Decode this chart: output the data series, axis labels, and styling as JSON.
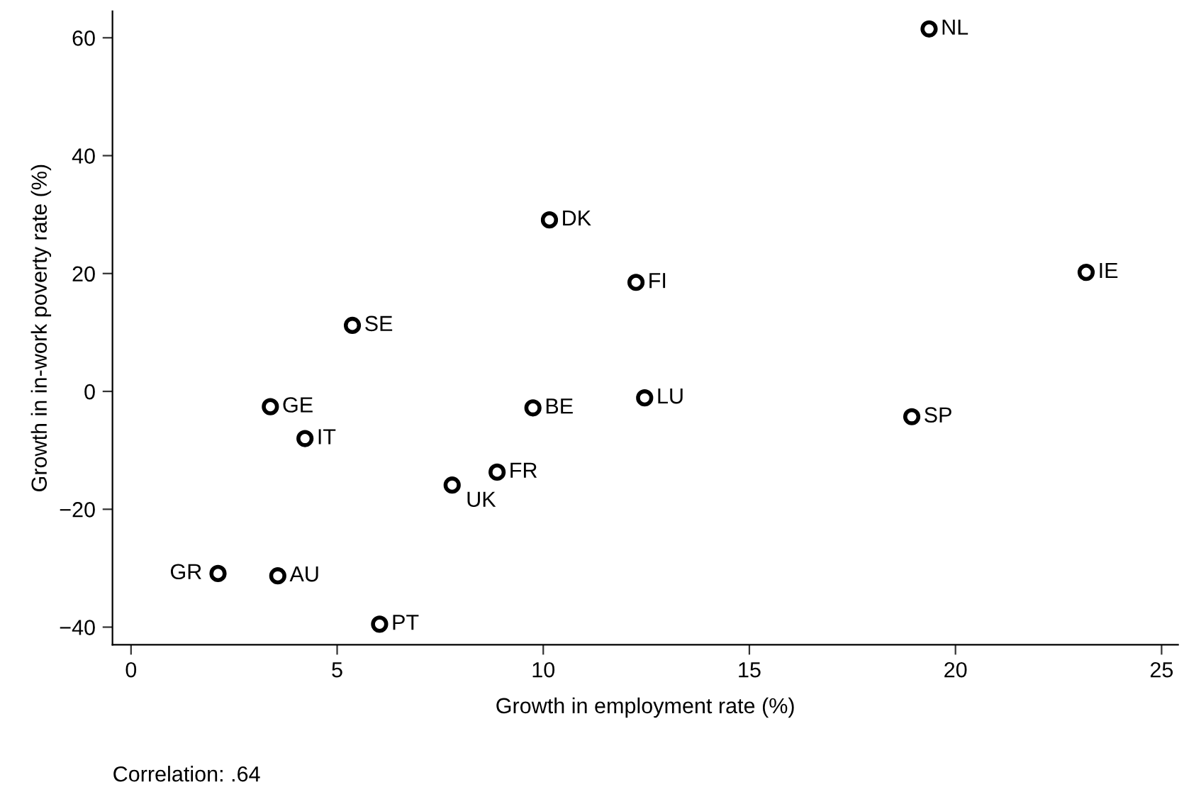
{
  "chart_data": {
    "type": "scatter",
    "xlabel": "Growth in employment rate (%)",
    "ylabel": "Growth in in-work poverty rate (%)",
    "x": [
      19.36,
      10.15,
      12.25,
      23.17,
      5.37,
      3.38,
      9.75,
      12.46,
      18.94,
      4.22,
      8.88,
      7.79,
      2.11,
      3.56,
      6.03
    ],
    "series": [
      {
        "color": "#000000",
        "values": [
          61.5,
          29.1,
          18.5,
          20.2,
          11.2,
          -2.6,
          -2.8,
          -1.1,
          -4.3,
          -8.0,
          -13.7,
          -15.9,
          -30.9,
          -31.3,
          -39.5
        ]
      }
    ],
    "marker": "circle",
    "grid": false,
    "legend": false,
    "xlim": [
      -0.45,
      25.4
    ],
    "xticks": [
      0,
      5,
      10,
      15,
      20,
      25
    ],
    "ylim": [
      -43,
      64.5
    ],
    "yticks": [
      -40,
      -20,
      0,
      20,
      40,
      60
    ],
    "annotations": [
      {
        "text": "NL",
        "x": 19.36,
        "y": 61.5
      },
      {
        "text": "DK",
        "x": 10.15,
        "y": 29.1
      },
      {
        "text": "FI",
        "x": 12.25,
        "y": 18.5
      },
      {
        "text": "IE",
        "x": 23.17,
        "y": 20.2
      },
      {
        "text": "SE",
        "x": 5.37,
        "y": 11.2
      },
      {
        "text": "GE",
        "x": 3.38,
        "y": -2.6
      },
      {
        "text": "BE",
        "x": 9.75,
        "y": -2.8
      },
      {
        "text": "LU",
        "x": 12.46,
        "y": -1.1
      },
      {
        "text": "SP",
        "x": 18.94,
        "y": -4.3
      },
      {
        "text": "IT",
        "x": 4.22,
        "y": -8.0
      },
      {
        "text": "FR",
        "x": 8.88,
        "y": -13.7
      },
      {
        "text": "UK",
        "x": 7.79,
        "y": -15.9
      },
      {
        "text": "GR",
        "x": 2.11,
        "y": -30.9
      },
      {
        "text": "AU",
        "x": 3.56,
        "y": -31.3
      },
      {
        "text": "PT",
        "x": 6.03,
        "y": -39.5
      },
      "Correlation: .64"
    ]
  }
}
